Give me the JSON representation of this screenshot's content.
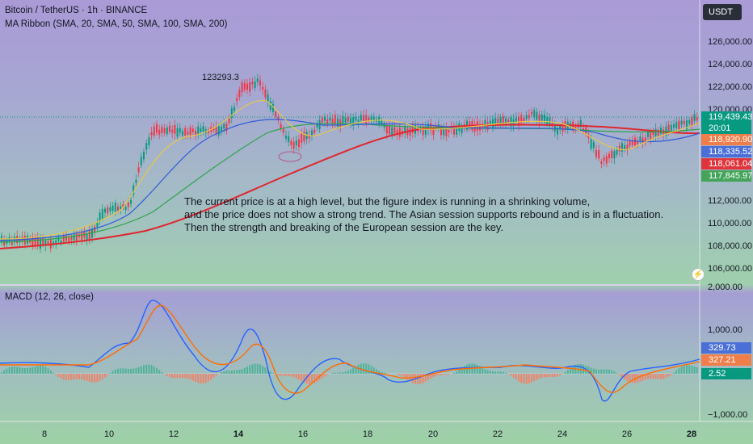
{
  "header": {
    "symbol": "Bitcoin / TetherUS · 1h · BINANCE",
    "indicator": "MA Ribbon (SMA, 20, SMA, 50, SMA, 100, SMA, 200)",
    "currency_button": "USDT",
    "macd_title": "MACD (12, 26, close)"
  },
  "annotation": {
    "high_label": "123293.3",
    "note_line1": "The current price is at a high level, but the figure index is running in a shrinking volume,",
    "note_line2": "and the price does not show a strong trend. The Asian session supports rebound and is in a fluctuation.",
    "note_line3": "Then the strength and breaking of the European session are the key."
  },
  "price_axis": [
    "126,000.00",
    "124,000.00",
    "122,000.00",
    "120,000.00",
    "112,000.00",
    "110,000.00",
    "108,000.00",
    "106,000.00"
  ],
  "macd_axis": [
    "2,000.00",
    "1,000.00",
    "−1,000.00"
  ],
  "x_axis": [
    "8",
    "10",
    "12",
    "14",
    "16",
    "18",
    "20",
    "22",
    "24",
    "26",
    "28"
  ],
  "badges": [
    {
      "label": "119,439.43",
      "color": "#089981"
    },
    {
      "label": "20:01",
      "color": "#089981"
    },
    {
      "label": "118,920.90",
      "color": "#f07e4b"
    },
    {
      "label": "118,335.52",
      "color": "#4a6fd6"
    },
    {
      "label": "118,061.04",
      "color": "#e0343c"
    },
    {
      "label": "117,845.97",
      "color": "#43a45a"
    },
    {
      "label": "329.73",
      "color": "#4a6fd6"
    },
    {
      "label": "327.21",
      "color": "#f07e4b"
    },
    {
      "label": "2.52",
      "color": "#089981"
    }
  ],
  "colors": {
    "up": "#089981",
    "down": "#f23645",
    "sma20": "#e6c84a",
    "sma50": "#2f5bd8",
    "sma100": "#2ea34d",
    "sma200": "#e0262f",
    "macd": "#2962ff",
    "signal": "#ff6d00"
  },
  "icons": {
    "lightning": "lightning-icon"
  }
}
